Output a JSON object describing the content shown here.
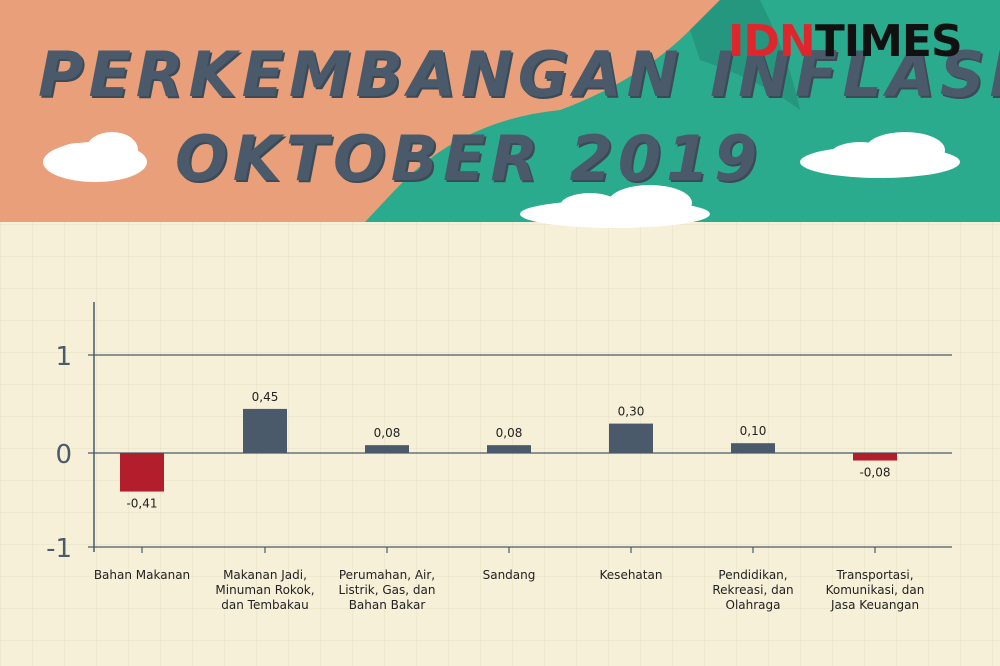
{
  "header": {
    "title_line1": "PERKEMBANGAN INFLASI",
    "title_line2": "OKTOBER 2019",
    "logo_idn": "IDN",
    "logo_times": "TIMES"
  },
  "colors": {
    "background": "#f6f0d8",
    "banner_orange": "#e9a07a",
    "banner_teal": "#2bab8e",
    "bar_positive": "#4a5a6a",
    "bar_negative": "#b21e2b",
    "axis": "#4a5a6a"
  },
  "chart_data": {
    "type": "bar",
    "categories": [
      "Bahan Makanan",
      "Makanan Jadi, Minuman Rokok, dan Tembakau",
      "Perumahan, Air, Listrik, Gas, dan Bahan Bakar",
      "Sandang",
      "Kesehatan",
      "Pendidikan, Rekreasi, dan Olahraga",
      "Transportasi, Komunikasi, dan Jasa Keuangan"
    ],
    "category_lines": [
      [
        "Bahan Makanan"
      ],
      [
        "Makanan Jadi,",
        "Minuman Rokok,",
        "dan Tembakau"
      ],
      [
        "Perumahan, Air,",
        "Listrik, Gas, dan",
        "Bahan Bakar"
      ],
      [
        "Sandang"
      ],
      [
        "Kesehatan"
      ],
      [
        "Pendidikan,",
        "Rekreasi, dan",
        "Olahraga"
      ],
      [
        "Transportasi,",
        "Komunikasi, dan",
        "Jasa Keuangan"
      ]
    ],
    "values": [
      -0.41,
      0.45,
      0.08,
      0.08,
      0.3,
      0.1,
      -0.08
    ],
    "value_labels": [
      "-0,41",
      "0,45",
      "0,08",
      "0,08",
      "0,30",
      "0,10",
      "-0,08"
    ],
    "ylim": [
      -1,
      1
    ],
    "yticks": [
      1,
      0,
      -1
    ],
    "ytick_labels": [
      "1",
      "0",
      "-1"
    ],
    "grid": true,
    "legend": false
  }
}
